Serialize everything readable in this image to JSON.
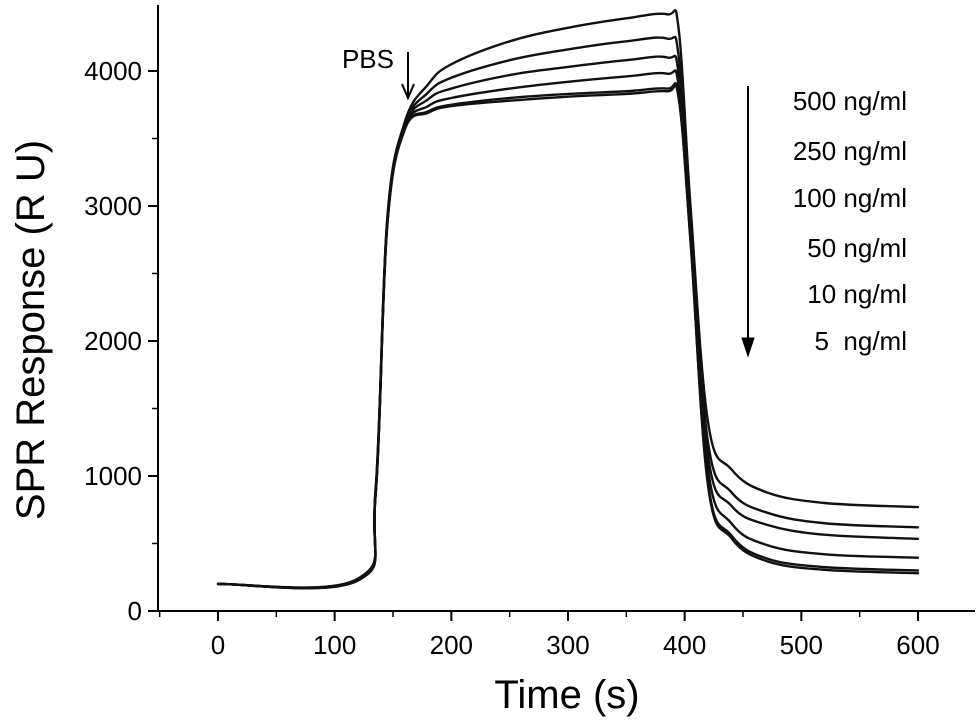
{
  "chart_data": {
    "type": "line",
    "xlabel": "Time (s)",
    "ylabel": "SPR Response (R U)",
    "xlim": [
      -50,
      650
    ],
    "ylim": [
      0,
      4500
    ],
    "xticks": [
      0,
      100,
      200,
      300,
      400,
      500,
      600
    ],
    "yticks": [
      0,
      1000,
      2000,
      3000,
      4000
    ],
    "grid": false,
    "annotations": {
      "injection_label": "PBS",
      "concentration_labels": [
        "500 ng/ml",
        "250 ng/ml",
        "100 ng/ml",
        "50 ng/ml",
        "10 ng/ml",
        "5  ng/ml"
      ]
    },
    "x": [
      0,
      120,
      135,
      145,
      160,
      180,
      200,
      250,
      300,
      350,
      385,
      395,
      405,
      420,
      440,
      470,
      520,
      600
    ],
    "series": [
      {
        "values": [
          200,
          240,
          900,
          2900,
          3620,
          3900,
          4050,
          4220,
          4320,
          4390,
          4420,
          4300,
          3000,
          1400,
          1050,
          880,
          800,
          770
        ]
      },
      {
        "values": [
          200,
          235,
          880,
          2880,
          3600,
          3840,
          3950,
          4080,
          4160,
          4220,
          4240,
          4100,
          2900,
          1250,
          880,
          730,
          650,
          620
        ]
      },
      {
        "values": [
          200,
          232,
          870,
          2870,
          3590,
          3790,
          3870,
          3970,
          4030,
          4080,
          4100,
          3970,
          2850,
          1150,
          780,
          640,
          565,
          535
        ]
      },
      {
        "values": [
          200,
          230,
          860,
          2860,
          3580,
          3740,
          3800,
          3870,
          3920,
          3960,
          3980,
          3880,
          2800,
          1050,
          650,
          490,
          420,
          395
        ]
      },
      {
        "values": [
          200,
          228,
          850,
          2850,
          3570,
          3700,
          3750,
          3800,
          3830,
          3850,
          3870,
          3800,
          2750,
          950,
          560,
          390,
          325,
          300
        ]
      },
      {
        "values": [
          200,
          226,
          845,
          2845,
          3565,
          3690,
          3740,
          3780,
          3810,
          3830,
          3850,
          3790,
          2740,
          930,
          540,
          370,
          305,
          280
        ]
      }
    ]
  }
}
